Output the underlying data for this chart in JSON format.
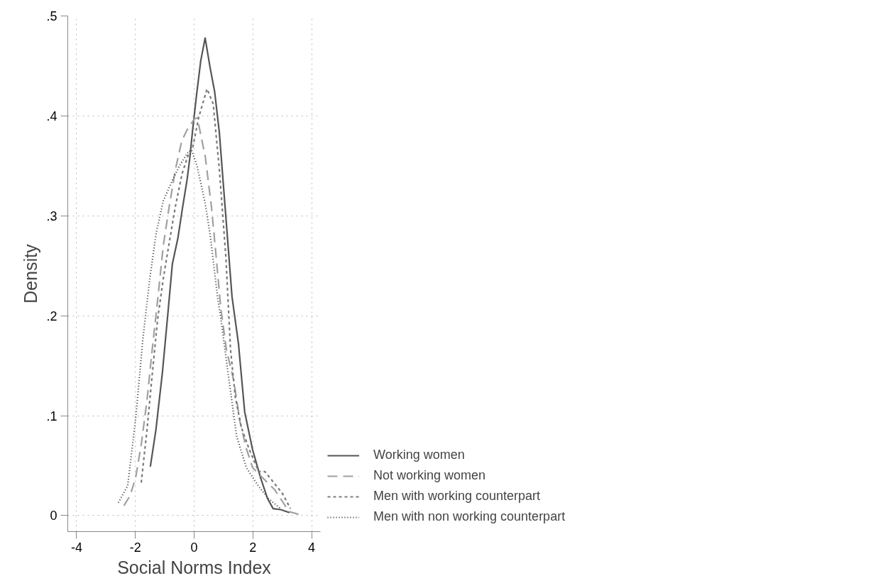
{
  "chart_data": {
    "type": "line",
    "xlabel": "Social Norms Index",
    "ylabel": "Density",
    "xlim": [
      -4.3,
      4.3
    ],
    "ylim": [
      -0.016,
      0.5
    ],
    "xticks": [
      -4,
      -2,
      0,
      2,
      4
    ],
    "yticks": [
      0,
      {
        "value": 0.1,
        "label": ".1"
      },
      {
        "value": 0.2,
        "label": ".2"
      },
      {
        "value": 0.3,
        "label": ".3"
      },
      {
        "value": 0.4,
        "label": ".4"
      },
      {
        "value": 0.5,
        "label": ".5"
      }
    ],
    "grid": true,
    "legend": "right",
    "series": [
      {
        "name": "Working women",
        "color": "#555555",
        "line_style": "solid",
        "x": [
          -1.49,
          -1.3,
          -1.08,
          -0.9,
          -0.74,
          -0.55,
          -0.4,
          -0.24,
          -0.15,
          -0.05,
          0.075,
          0.225,
          0.375,
          0.54,
          0.7,
          0.86,
          1.08,
          1.29,
          1.51,
          1.72,
          1.99,
          2.26,
          2.5,
          2.69,
          2.95,
          3.25
        ],
        "values": [
          0.049,
          0.086,
          0.143,
          0.2,
          0.252,
          0.278,
          0.307,
          0.336,
          0.357,
          0.386,
          0.419,
          0.455,
          0.478,
          0.449,
          0.424,
          0.383,
          0.299,
          0.219,
          0.172,
          0.104,
          0.066,
          0.038,
          0.017,
          0.007,
          0.006,
          0.003
        ]
      },
      {
        "name": "Not working women",
        "color": "#a0a0a0",
        "line_style": "dashed",
        "x": [
          -2.39,
          -2.18,
          -1.99,
          -1.8,
          -1.61,
          -1.43,
          -1.24,
          -1.05,
          -0.86,
          -0.64,
          -0.42,
          -0.24,
          0.01,
          0.11,
          0.38,
          0.59,
          0.75,
          0.91,
          1.1,
          1.35,
          1.56,
          1.78,
          1.99,
          2.36,
          2.74,
          3.01,
          3.23,
          3.6
        ],
        "values": [
          0.01,
          0.02,
          0.038,
          0.071,
          0.114,
          0.165,
          0.216,
          0.27,
          0.307,
          0.346,
          0.375,
          0.386,
          0.397,
          0.398,
          0.359,
          0.309,
          0.259,
          0.207,
          0.166,
          0.135,
          0.094,
          0.067,
          0.048,
          0.037,
          0.026,
          0.014,
          0.004,
          0.001
        ]
      },
      {
        "name": "Men with working counterpart",
        "color": "#7a7a7a",
        "line_style": "dashed_short",
        "x": [
          -1.8,
          -1.61,
          -1.42,
          -1.24,
          -1.05,
          -0.82,
          -0.64,
          -0.41,
          -0.18,
          -0.05,
          0.16,
          0.44,
          0.65,
          0.86,
          1.08,
          1.24,
          1.4,
          1.61,
          1.88,
          2.2,
          2.41,
          2.74,
          3.01,
          3.28
        ],
        "values": [
          0.033,
          0.084,
          0.143,
          0.197,
          0.237,
          0.278,
          0.309,
          0.342,
          0.363,
          0.368,
          0.399,
          0.427,
          0.412,
          0.346,
          0.259,
          0.166,
          0.119,
          0.088,
          0.066,
          0.044,
          0.044,
          0.032,
          0.022,
          0.007
        ]
      },
      {
        "name": "Men with non working counterpart",
        "color": "#333333",
        "line_style": "dotted",
        "x": [
          -2.58,
          -2.26,
          -1.98,
          -1.75,
          -1.51,
          -1.29,
          -1.05,
          -0.73,
          -0.5,
          -0.22,
          -0.09,
          0.1,
          0.38,
          0.56,
          0.8,
          0.91,
          1.19,
          1.45,
          1.78,
          2.2,
          2.53,
          2.95
        ],
        "values": [
          0.013,
          0.03,
          0.1,
          0.175,
          0.237,
          0.283,
          0.315,
          0.336,
          0.35,
          0.363,
          0.366,
          0.35,
          0.312,
          0.278,
          0.218,
          0.197,
          0.135,
          0.079,
          0.048,
          0.029,
          0.017,
          0.007
        ]
      }
    ]
  }
}
